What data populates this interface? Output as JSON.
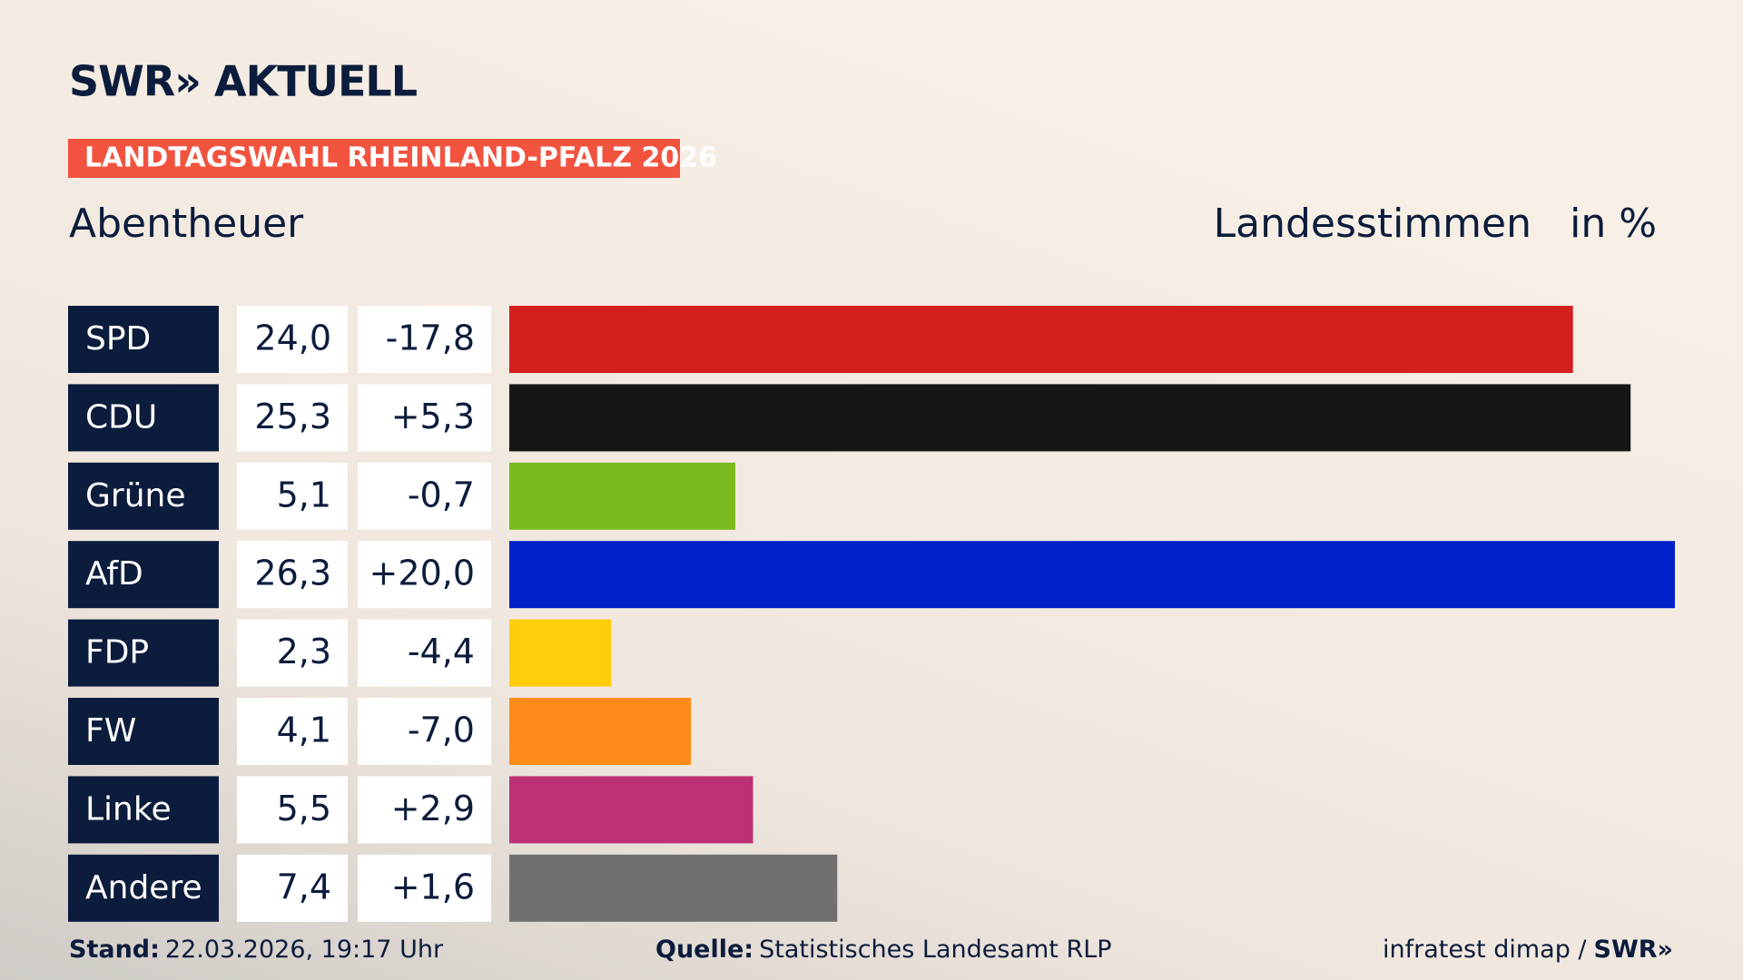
{
  "chart_data": {
    "type": "bar",
    "logo": "SWR» AKTUELL",
    "banner": "LANDTAGSWAHL RHEINLAND-PFALZ 2026",
    "title": "Abentheuer",
    "subtitle": "Landesstimmen",
    "unit": "in %",
    "categories": [
      "SPD",
      "CDU",
      "Grüne",
      "AfD",
      "FDP",
      "FW",
      "Linke",
      "Andere"
    ],
    "values": [
      24.0,
      25.3,
      5.1,
      26.3,
      2.3,
      4.1,
      5.5,
      7.4
    ],
    "value_labels": [
      "24,0",
      "25,3",
      "5,1",
      "26,3",
      "2,3",
      "4,1",
      "5,5",
      "7,4"
    ],
    "change_labels": [
      "-17,8",
      "+5,3",
      "-0,7",
      "+20,0",
      "-4,4",
      "-7,0",
      "+2,9",
      "+1,6"
    ],
    "colors": [
      "#d41f1f",
      "#161616",
      "#7aba1e",
      "#0021c8",
      "#ffcd0a",
      "#ff8c1a",
      "#bc3275",
      "#707070"
    ],
    "footer": {
      "stand_label": "Stand:",
      "stand": "22.03.2026, 19:17 Uhr",
      "source_label": "Quelle:",
      "source": "Statistisches Landesamt RLP",
      "credit": "infratest dimap /",
      "brand": "SWR»"
    }
  }
}
